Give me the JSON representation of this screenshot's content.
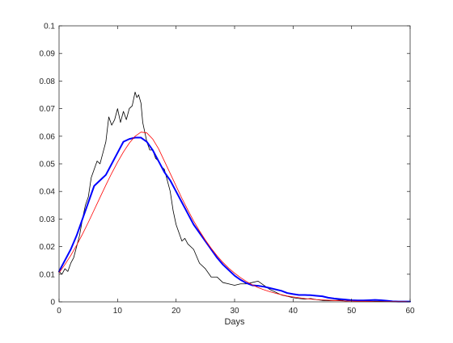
{
  "chart_data": {
    "type": "line",
    "title": "",
    "xlabel": "Days",
    "ylabel": "",
    "xlim": [
      0,
      60
    ],
    "ylim": [
      0,
      0.1
    ],
    "x_ticks": [
      0,
      10,
      20,
      30,
      40,
      50,
      60
    ],
    "y_ticks": [
      0,
      0.01,
      0.02,
      0.03,
      0.04,
      0.05,
      0.06,
      0.07,
      0.08,
      0.09,
      0.1
    ],
    "x_tick_labels": [
      "0",
      "10",
      "20",
      "30",
      "40",
      "50",
      "60"
    ],
    "y_tick_labels": [
      "0",
      "0.01",
      "0.02",
      "0.03",
      "0.04",
      "0.05",
      "0.06",
      "0.07",
      "0.08",
      "0.09",
      "0.1"
    ],
    "grid": false,
    "legend": "none",
    "series": [
      {
        "color": "#000000",
        "stroke": "thin",
        "x": [
          0,
          0.5,
          1,
          1.5,
          2,
          2.5,
          3,
          3.5,
          4,
          4.5,
          5,
          5.5,
          6,
          6.5,
          7,
          7.5,
          8,
          8.5,
          9,
          9.5,
          10,
          10.5,
          11,
          11.5,
          12,
          12.5,
          13,
          13.3,
          13.6,
          14,
          14.3,
          14.6,
          15,
          15.5,
          16,
          16.5,
          17,
          17.5,
          18,
          18.5,
          19,
          19.5,
          20,
          20.5,
          21,
          21.5,
          22,
          23,
          24,
          25,
          26,
          27,
          28,
          29,
          30,
          31,
          32,
          33,
          34,
          35,
          36,
          37,
          38,
          39,
          40,
          41,
          42,
          43,
          44,
          45,
          46,
          47,
          48,
          49,
          50,
          51,
          52,
          53,
          54,
          55,
          56,
          57,
          58,
          59,
          60
        ],
        "y": [
          0.011,
          0.01,
          0.012,
          0.011,
          0.014,
          0.016,
          0.02,
          0.024,
          0.03,
          0.035,
          0.038,
          0.045,
          0.048,
          0.051,
          0.05,
          0.054,
          0.058,
          0.067,
          0.064,
          0.066,
          0.07,
          0.065,
          0.069,
          0.066,
          0.07,
          0.071,
          0.076,
          0.074,
          0.075,
          0.072,
          0.065,
          0.062,
          0.058,
          0.055,
          0.055,
          0.052,
          0.051,
          0.049,
          0.048,
          0.044,
          0.04,
          0.033,
          0.028,
          0.025,
          0.022,
          0.023,
          0.021,
          0.019,
          0.014,
          0.012,
          0.009,
          0.009,
          0.007,
          0.0065,
          0.006,
          0.0065,
          0.0065,
          0.007,
          0.0075,
          0.006,
          0.0045,
          0.0035,
          0.0025,
          0.002,
          0.0015,
          0.0012,
          0.001,
          0.0012,
          0.0008,
          0.0005,
          0.0004,
          0.0005,
          0.0006,
          0.0003,
          0.0005,
          0.0004,
          0.0003,
          0.0002,
          0.0002,
          0.0002,
          0.0001,
          0.0002,
          0.0001,
          0.0001,
          0.0001
        ]
      },
      {
        "color": "#0000ff",
        "stroke": "thick",
        "x": [
          0,
          1,
          2,
          3,
          4,
          5,
          6,
          7,
          8,
          9,
          10,
          11,
          12,
          13,
          14,
          15,
          16,
          17,
          18,
          19,
          20,
          21,
          22,
          23,
          24,
          25,
          26,
          27,
          28,
          29,
          30,
          31,
          32,
          33,
          34,
          35,
          36,
          37,
          38,
          39,
          40,
          41,
          42,
          43,
          44,
          45,
          46,
          47,
          48,
          49,
          50,
          51,
          52,
          53,
          54,
          55,
          56,
          57,
          58,
          59,
          60
        ],
        "y": [
          0.011,
          0.015,
          0.019,
          0.024,
          0.03,
          0.036,
          0.042,
          0.044,
          0.046,
          0.05,
          0.054,
          0.058,
          0.059,
          0.0595,
          0.0595,
          0.058,
          0.055,
          0.051,
          0.047,
          0.044,
          0.04,
          0.036,
          0.032,
          0.028,
          0.025,
          0.022,
          0.019,
          0.016,
          0.0135,
          0.0115,
          0.0095,
          0.008,
          0.0068,
          0.006,
          0.0058,
          0.0055,
          0.005,
          0.0045,
          0.004,
          0.0032,
          0.0028,
          0.0025,
          0.0025,
          0.0024,
          0.0022,
          0.002,
          0.0015,
          0.0012,
          0.001,
          0.0008,
          0.0006,
          0.0005,
          0.0005,
          0.0006,
          0.0007,
          0.0006,
          0.0004,
          0.0002,
          0.0001,
          0.0001,
          0.0001
        ]
      },
      {
        "color": "#ff0000",
        "stroke": "thin",
        "x": [
          0,
          1,
          2,
          3,
          4,
          5,
          6,
          7,
          8,
          9,
          10,
          11,
          12,
          13,
          14,
          15,
          16,
          17,
          18,
          19,
          20,
          21,
          22,
          23,
          24,
          25,
          26,
          27,
          28,
          29,
          30,
          31,
          32,
          33,
          34,
          35,
          36,
          37,
          38,
          39,
          40,
          41,
          42,
          43,
          44,
          45,
          46,
          47,
          48,
          49,
          50,
          51,
          52,
          53,
          54,
          55,
          56,
          57,
          58,
          59,
          60
        ],
        "y": [
          0.0105,
          0.0135,
          0.0168,
          0.0205,
          0.0245,
          0.0288,
          0.0333,
          0.0378,
          0.0423,
          0.0466,
          0.0506,
          0.0543,
          0.0575,
          0.06,
          0.0615,
          0.0612,
          0.059,
          0.0555,
          0.051,
          0.0465,
          0.042,
          0.0375,
          0.0333,
          0.0293,
          0.0257,
          0.0224,
          0.0194,
          0.0167,
          0.0143,
          0.0122,
          0.0104,
          0.0088,
          0.0074,
          0.0062,
          0.0052,
          0.0044,
          0.0037,
          0.0031,
          0.0026,
          0.0021,
          0.0018,
          0.0015,
          0.0012,
          0.001,
          0.0008,
          0.0007,
          0.0006,
          0.0005,
          0.0004,
          0.0003,
          0.0003,
          0.0002,
          0.0002,
          0.0002,
          0.0001,
          0.0001,
          0.0001,
          0.0001,
          0.0001,
          0.0001,
          0
        ]
      }
    ]
  }
}
